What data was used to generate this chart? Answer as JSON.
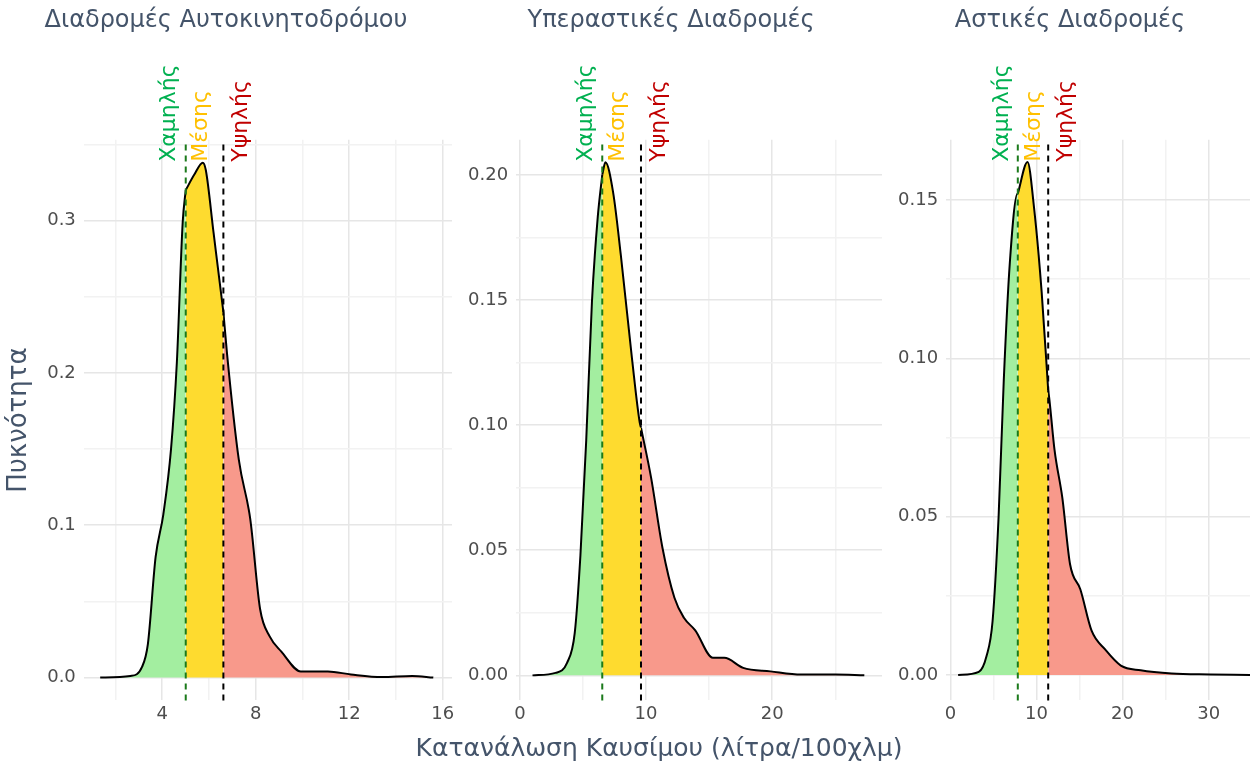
{
  "chart_data": [
    {
      "type": "area",
      "title": "Διαδρομές Αυτοκινητοδρόμου",
      "ylabel": "Πυκνότητα",
      "marker": "none",
      "grid": true,
      "xlim": [
        0.65,
        16.4
      ],
      "ylim": [
        -0.015,
        0.353
      ],
      "xticks": [
        {
          "value": 2,
          "label": null
        },
        4,
        {
          "value": 6,
          "label": null
        },
        8,
        {
          "value": 10,
          "label": null
        },
        12,
        {
          "value": 14,
          "label": null
        },
        16
      ],
      "yticks": [
        {
          "value": 0,
          "label": "0.0"
        },
        {
          "value": 0.05,
          "label": null
        },
        0.1,
        {
          "value": 0.15,
          "label": null
        },
        0.2,
        {
          "value": 0.25,
          "label": null
        },
        0.3,
        {
          "value": 0.35,
          "label": null
        }
      ],
      "series": [
        {
          "color": "#a3eea0",
          "x": [
            1.35,
            2.64,
            3.14,
            3.39,
            3.72,
            4.05,
            4.38,
            4.63,
            4.88,
            5.01
          ],
          "values": [
            0,
            0.001,
            0.007,
            0.022,
            0.079,
            0.107,
            0.15,
            0.207,
            0.299,
            0.32
          ]
        },
        {
          "color": "#fedb2f",
          "x": [
            5.01,
            5.37,
            5.74,
            5.87,
            6.2,
            6.53,
            6.62
          ],
          "values": [
            0.32,
            0.33,
            0.338,
            0.333,
            0.292,
            0.251,
            0.24
          ]
        },
        {
          "color": "#f8998b",
          "x": [
            6.62,
            6.78,
            7.28,
            7.77,
            8.19,
            8.6,
            9.1,
            9.93,
            11.09,
            12.08,
            13.4,
            14.7,
            15.6
          ],
          "values": [
            0.24,
            0.212,
            0.143,
            0.104,
            0.045,
            0.027,
            0.017,
            0.004,
            0.004,
            0.002,
            0.0003,
            0.001,
            0
          ]
        }
      ],
      "ref_lines": [
        {
          "axis": "x",
          "value": 5.01,
          "label": "Χαμηλής",
          "color": "#1b7a1b",
          "line_style": "dashed"
        },
        {
          "axis": "x",
          "value": 6.62,
          "label": "Υψηλής",
          "color": "#000000",
          "line_style": "dashed"
        }
      ],
      "annotations": [
        "Μέσης"
      ]
    },
    {
      "type": "area",
      "title": "Υπεραστικές Διαδρομές",
      "xlabel": "Κατανάλωση Καυσίμου (λίτρα/100χλμ)",
      "marker": "none",
      "grid": true,
      "xlim": [
        -0.3,
        28.7
      ],
      "ylim": [
        -0.01,
        0.214
      ],
      "xticks": [
        0,
        {
          "value": 5,
          "label": null
        },
        10,
        {
          "value": 15,
          "label": null
        },
        20,
        {
          "value": 25,
          "label": null
        }
      ],
      "yticks": [
        {
          "value": 0,
          "label": "0.00"
        },
        {
          "value": 0.025,
          "label": null
        },
        {
          "value": 0.05,
          "label": "0.05"
        },
        {
          "value": 0.075,
          "label": null
        },
        {
          "value": 0.1,
          "label": "0.10"
        },
        {
          "value": 0.125,
          "label": null
        },
        {
          "value": 0.15,
          "label": "0.15"
        },
        {
          "value": 0.175,
          "label": null
        },
        {
          "value": 0.2,
          "label": "0.20"
        }
      ],
      "series": [
        {
          "color": "#a3eea0",
          "x": [
            1.0,
            2.83,
            3.74,
            4.35,
            4.8,
            5.26,
            5.71,
            6.17,
            6.53
          ],
          "values": [
            0,
            0.001,
            0.005,
            0.017,
            0.048,
            0.094,
            0.149,
            0.183,
            0.2
          ]
        },
        {
          "color": "#fedb2f",
          "x": [
            6.53,
            6.78,
            7.39,
            8.0,
            8.9,
            9.5,
            9.6
          ],
          "values": [
            0.2,
            0.205,
            0.193,
            0.168,
            0.126,
            0.101,
            0.099
          ]
        },
        {
          "color": "#f8998b",
          "x": [
            9.6,
            10.4,
            11.3,
            12.25,
            13.0,
            13.9,
            15.3,
            16.2,
            17.7,
            19.85,
            22.3,
            25.0,
            27.3
          ],
          "values": [
            0.099,
            0.079,
            0.051,
            0.031,
            0.023,
            0.018,
            0.007,
            0.007,
            0.003,
            0.0016,
            0.0003,
            0.0003,
            0
          ]
        }
      ],
      "ref_lines": [
        {
          "axis": "x",
          "value": 6.53,
          "label": "Χαμηλής",
          "color": "#1b7a1b",
          "line_style": "dashed"
        },
        {
          "axis": "x",
          "value": 9.6,
          "label": "Υψηλής",
          "color": "#000000",
          "line_style": "dashed"
        }
      ],
      "annotations": [
        "Μέσης"
      ]
    },
    {
      "type": "area",
      "title": "Αστικές Διαδρομές",
      "marker": "none",
      "grid": true,
      "xlim": [
        -0.5,
        34.8
      ],
      "ylim": [
        -0.008,
        0.169
      ],
      "xticks": [
        0,
        {
          "value": 5,
          "label": null
        },
        10,
        {
          "value": 15,
          "label": null
        },
        20,
        {
          "value": 25,
          "label": null
        },
        30
      ],
      "yticks": [
        {
          "value": 0,
          "label": "0.00"
        },
        {
          "value": 0.025,
          "label": null
        },
        {
          "value": 0.05,
          "label": "0.05"
        },
        {
          "value": 0.075,
          "label": null
        },
        {
          "value": 0.1,
          "label": "0.10"
        },
        {
          "value": 0.125,
          "label": null
        },
        {
          "value": 0.15,
          "label": "0.15"
        }
      ],
      "series": [
        {
          "color": "#a3eea0",
          "x": [
            0.9,
            3.3,
            4.2,
            4.9,
            5.6,
            6.2,
            6.9,
            7.8,
            7.83
          ],
          "values": [
            0,
            0.001,
            0.006,
            0.017,
            0.05,
            0.093,
            0.13,
            0.152,
            0.152
          ]
        },
        {
          "color": "#fedb2f",
          "x": [
            7.83,
            8.96,
            9.7,
            10.6,
            11.36
          ],
          "values": [
            0.152,
            0.162,
            0.148,
            0.121,
            0.09
          ]
        },
        {
          "color": "#f8998b",
          "x": [
            11.36,
            11.5,
            12.1,
            13.0,
            13.9,
            15.1,
            16.4,
            18.0,
            19.8,
            22.1,
            25.7,
            30.2,
            34.8
          ],
          "values": [
            0.09,
            0.087,
            0.071,
            0.056,
            0.035,
            0.027,
            0.014,
            0.008,
            0.003,
            0.0015,
            0.0005,
            0.0002,
            0
          ]
        }
      ],
      "ref_lines": [
        {
          "axis": "x",
          "value": 7.83,
          "label": "Χαμηλής",
          "color": "#1b7a1b",
          "line_style": "dashed"
        },
        {
          "axis": "x",
          "value": 11.36,
          "label": "Υψηλής",
          "color": "#000000",
          "line_style": "dashed"
        }
      ],
      "annotations": [
        "Μέσης"
      ]
    }
  ]
}
